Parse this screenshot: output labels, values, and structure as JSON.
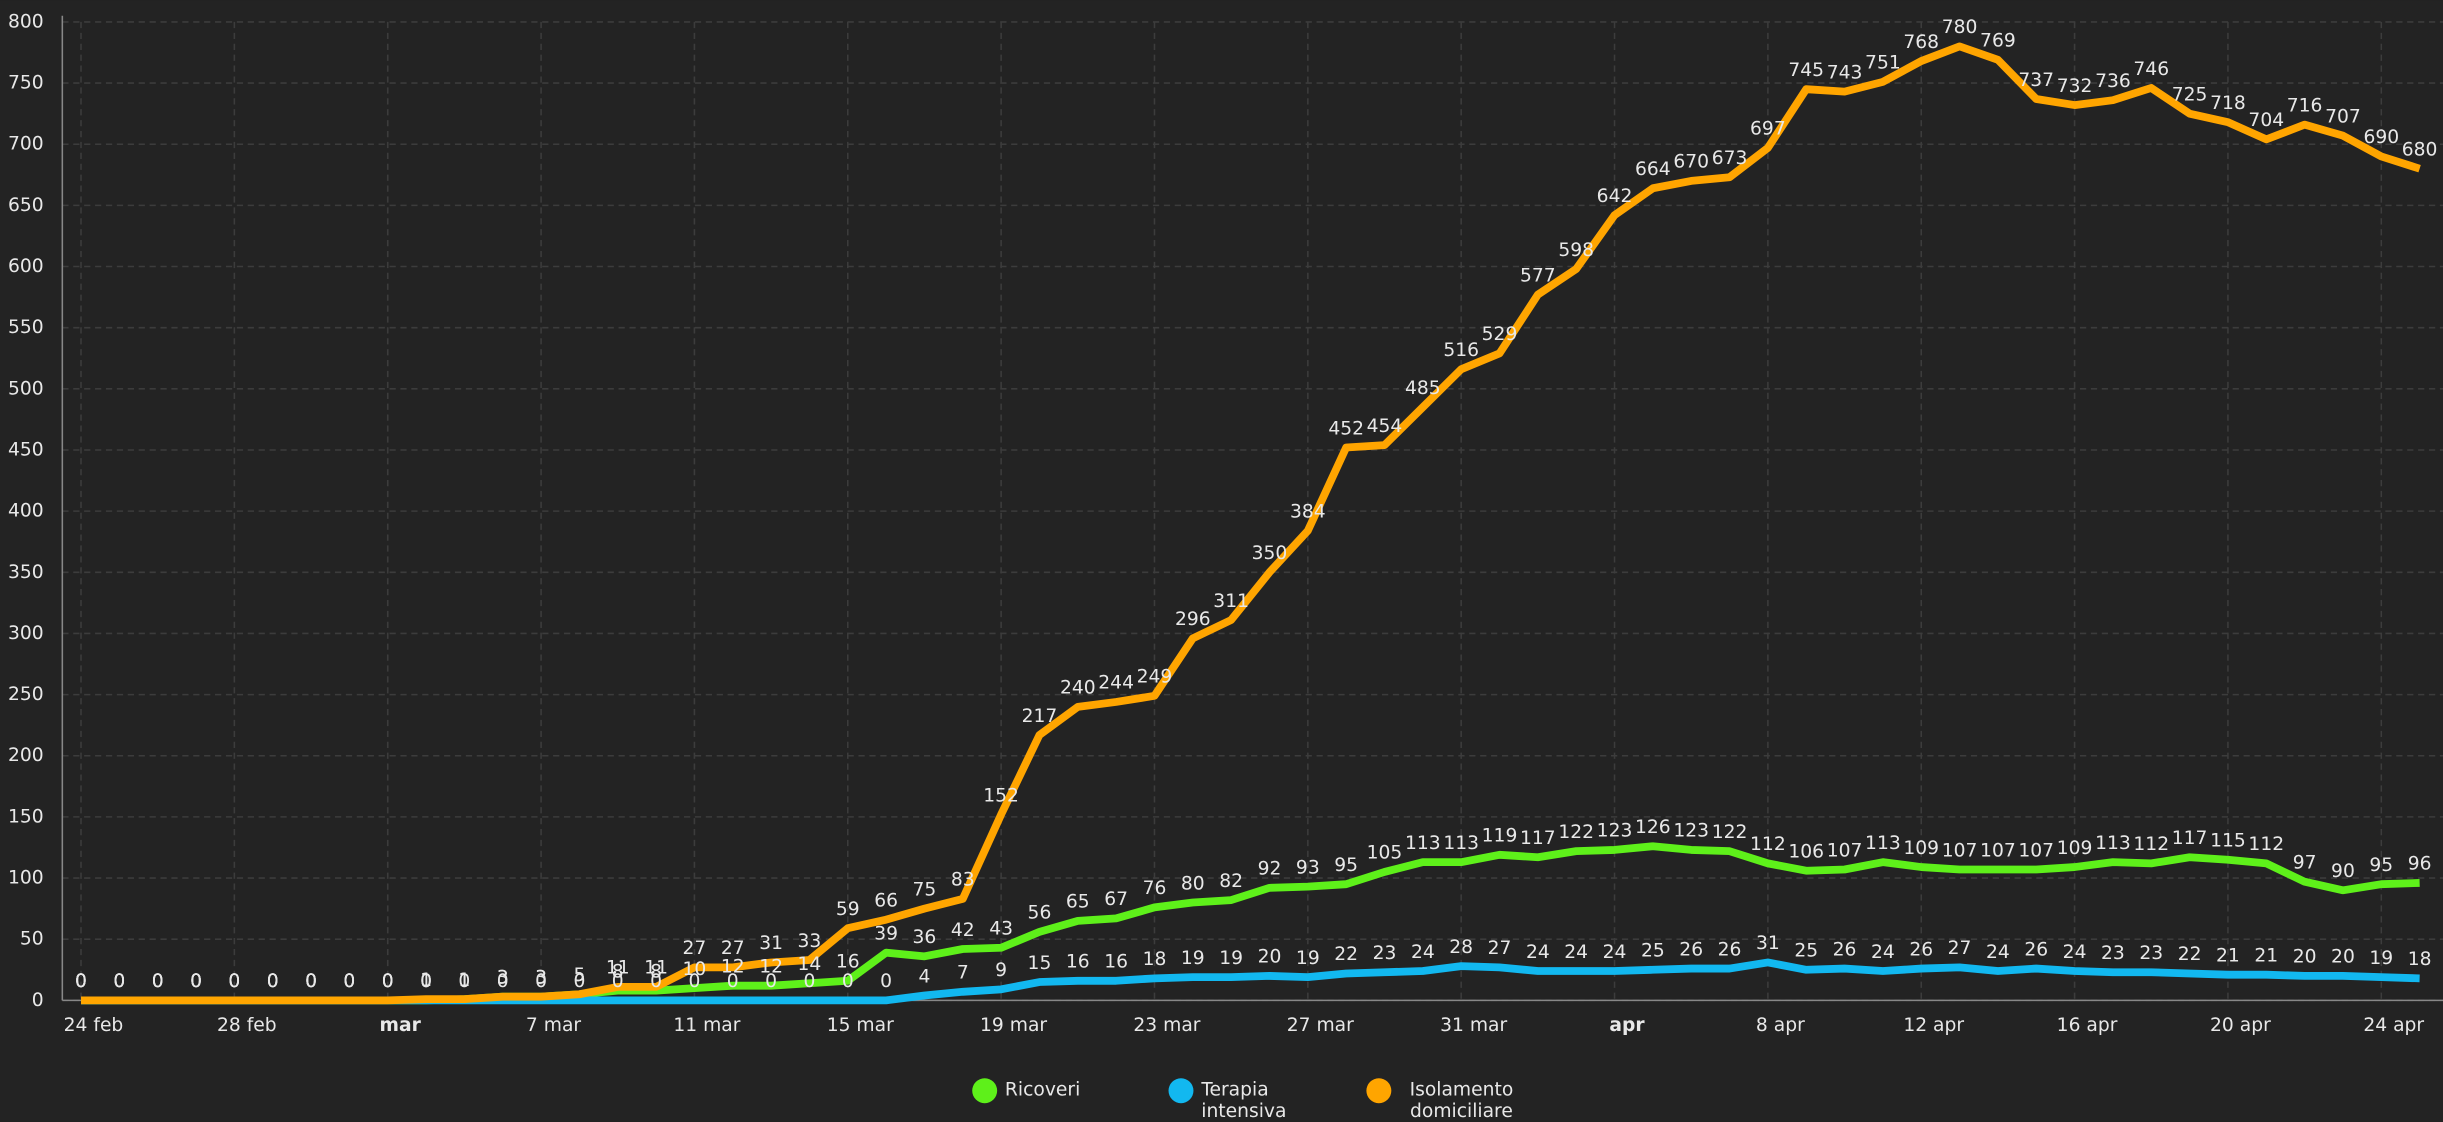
{
  "chart_data": {
    "type": "line",
    "categories": [
      "24 feb",
      null,
      null,
      null,
      "28 feb",
      null,
      null,
      null,
      "mar",
      null,
      null,
      null,
      "7 mar",
      null,
      null,
      null,
      "11 mar",
      null,
      null,
      null,
      "15 mar",
      null,
      null,
      null,
      "19 mar",
      null,
      null,
      null,
      "23 mar",
      null,
      null,
      null,
      "27 mar",
      null,
      null,
      null,
      "31 mar",
      null,
      null,
      null,
      "apr",
      null,
      null,
      null,
      "8 apr",
      null,
      null,
      null,
      "12 apr",
      null,
      null,
      null,
      "16 apr",
      null,
      null,
      null,
      "20 apr",
      null,
      null,
      null,
      "24 apr",
      null
    ],
    "series": [
      {
        "name": "Ricoveri",
        "color": "#5ef01a",
        "values": [
          0,
          0,
          0,
          0,
          0,
          0,
          0,
          0,
          0,
          0,
          1,
          3,
          3,
          5,
          8,
          8,
          10,
          12,
          12,
          14,
          16,
          39,
          36,
          42,
          43,
          56,
          65,
          67,
          76,
          80,
          82,
          92,
          93,
          95,
          105,
          113,
          113,
          119,
          117,
          122,
          123,
          126,
          123,
          122,
          112,
          106,
          107,
          113,
          109,
          107,
          107,
          107,
          109,
          113,
          112,
          117,
          115,
          112,
          97,
          90,
          95,
          96
        ]
      },
      {
        "name": "Terapia intensiva",
        "color": "#12b8f0",
        "values": [
          0,
          0,
          0,
          0,
          0,
          0,
          0,
          0,
          0,
          0,
          0,
          0,
          0,
          0,
          0,
          0,
          0,
          0,
          0,
          0,
          0,
          0,
          4,
          7,
          9,
          15,
          16,
          16,
          18,
          19,
          19,
          20,
          19,
          22,
          23,
          24,
          28,
          27,
          24,
          24,
          24,
          25,
          26,
          26,
          31,
          25,
          26,
          24,
          26,
          27,
          24,
          26,
          24,
          23,
          23,
          22,
          21,
          21,
          20,
          20,
          19,
          18
        ]
      },
      {
        "name": "Isolamento domiciliare",
        "color": "#ffa500",
        "values": [
          0,
          0,
          0,
          0,
          0,
          0,
          0,
          0,
          0,
          1,
          1,
          3,
          3,
          5,
          11,
          11,
          27,
          27,
          31,
          33,
          59,
          66,
          75,
          83,
          152,
          217,
          240,
          244,
          249,
          296,
          311,
          350,
          384,
          452,
          454,
          485,
          516,
          529,
          577,
          598,
          642,
          664,
          670,
          673,
          697,
          745,
          743,
          751,
          768,
          780,
          769,
          737,
          732,
          736,
          746,
          725,
          718,
          704,
          716,
          707,
          690,
          680
        ]
      }
    ],
    "ylim": [
      0,
      800
    ],
    "yticks": [
      0,
      50,
      100,
      150,
      200,
      250,
      300,
      350,
      400,
      450,
      500,
      550,
      600,
      650,
      700,
      750,
      800
    ],
    "grid": true
  }
}
